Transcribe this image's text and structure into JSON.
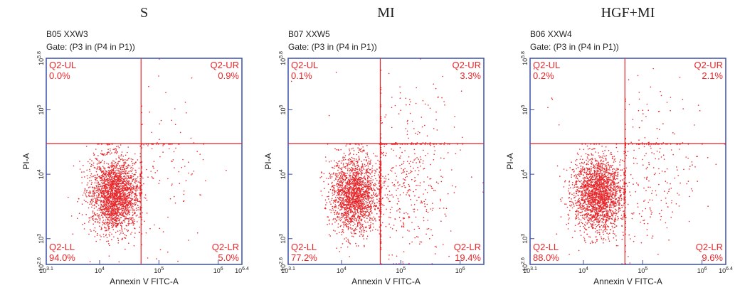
{
  "chart_data": [
    {
      "type": "quadrant",
      "title": "S",
      "subtitle": "B05 XXW3",
      "gate": "Gate: (P3 in (P4 in P1))",
      "x_label": "Annexin V FITC-A",
      "y_label": "PI-A",
      "log_scale": true,
      "color": "#e8262a",
      "frame_color": "#3a4fa8",
      "xlim": [
        1259,
        2511886
      ],
      "ylim": [
        398,
        630957
      ],
      "xticks": [
        {
          "value": 1259,
          "label": "10",
          "power": "3.1"
        },
        {
          "value": 10000,
          "label": "10",
          "power": "4"
        },
        {
          "value": 100000,
          "label": "10",
          "power": "5"
        },
        {
          "value": 1000000,
          "label": "10",
          "power": "6"
        },
        {
          "value": 2511886,
          "label": "10",
          "power": "6.4"
        }
      ],
      "yticks": [
        {
          "value": 398,
          "label": "10",
          "power": "2.6"
        },
        {
          "value": 1000,
          "label": "10",
          "power": "3"
        },
        {
          "value": 10000,
          "label": "10",
          "power": "4"
        },
        {
          "value": 100000,
          "label": "10",
          "power": "5"
        },
        {
          "value": 630957,
          "label": "10",
          "power": "5.8"
        }
      ],
      "quadrant_gate": [
        50000,
        30000
      ],
      "categories": [
        "Q2-UL",
        "Q2-UR",
        "Q2-LL",
        "Q2-LR"
      ],
      "values": [
        0.0,
        0.9,
        94.0,
        5.0
      ],
      "value_labels": [
        "0.0%",
        "0.9%",
        "94.0%",
        "5.0%"
      ]
    },
    {
      "type": "quadrant",
      "title": "MI",
      "subtitle": "B07 XXW5",
      "gate": "Gate: (P3 in (P4 in P1))",
      "x_label": "Annexin V FITC-A",
      "y_label": "PI-A",
      "log_scale": true,
      "color": "#e8262a",
      "frame_color": "#3a4fa8",
      "xlim": [
        1259,
        2511886
      ],
      "ylim": [
        398,
        630957
      ],
      "xticks": [
        {
          "value": 1259,
          "label": "10",
          "power": "3.1"
        },
        {
          "value": 10000,
          "label": "10",
          "power": "4"
        },
        {
          "value": 100000,
          "label": "10",
          "power": "5"
        },
        {
          "value": 1000000,
          "label": "10",
          "power": "6"
        }
      ],
      "yticks": [
        {
          "value": 398,
          "label": "10",
          "power": "2.6"
        },
        {
          "value": 1000,
          "label": "10",
          "power": "3"
        },
        {
          "value": 10000,
          "label": "10",
          "power": "4"
        },
        {
          "value": 100000,
          "label": "10",
          "power": "5"
        },
        {
          "value": 630957,
          "label": "10",
          "power": "5.8"
        }
      ],
      "quadrant_gate": [
        45000,
        30000
      ],
      "categories": [
        "Q2-UL",
        "Q2-UR",
        "Q2-LL",
        "Q2-LR"
      ],
      "values": [
        0.1,
        3.3,
        77.2,
        19.4
      ],
      "value_labels": [
        "0.1%",
        "3.3%",
        "77.2%",
        "19.4%"
      ]
    },
    {
      "type": "quadrant",
      "title": "HGF+MI",
      "subtitle": "B06 XXW4",
      "gate": "Gate: (P3 in (P4 in P1))",
      "x_label": "Annexin V FITC-A",
      "y_label": "PI-A",
      "log_scale": true,
      "color": "#e8262a",
      "frame_color": "#3a4fa8",
      "xlim": [
        1259,
        2511886
      ],
      "ylim": [
        398,
        630957
      ],
      "xticks": [
        {
          "value": 1259,
          "label": "10",
          "power": "3.1"
        },
        {
          "value": 10000,
          "label": "10",
          "power": "4"
        },
        {
          "value": 100000,
          "label": "10",
          "power": "5"
        },
        {
          "value": 1000000,
          "label": "10",
          "power": "6"
        },
        {
          "value": 2511886,
          "label": "10",
          "power": "6.4"
        }
      ],
      "yticks": [
        {
          "value": 398,
          "label": "10",
          "power": "2.6"
        },
        {
          "value": 1000,
          "label": "10",
          "power": "3"
        },
        {
          "value": 10000,
          "label": "10",
          "power": "4"
        },
        {
          "value": 100000,
          "label": "10",
          "power": "5"
        },
        {
          "value": 630957,
          "label": "10",
          "power": "5.8"
        }
      ],
      "quadrant_gate": [
        50000,
        30000
      ],
      "categories": [
        "Q2-UL",
        "Q2-UR",
        "Q2-LL",
        "Q2-LR"
      ],
      "values": [
        0.2,
        2.1,
        88.0,
        9.6
      ],
      "value_labels": [
        "0.2%",
        "2.1%",
        "88.0%",
        "9.6%"
      ]
    }
  ]
}
